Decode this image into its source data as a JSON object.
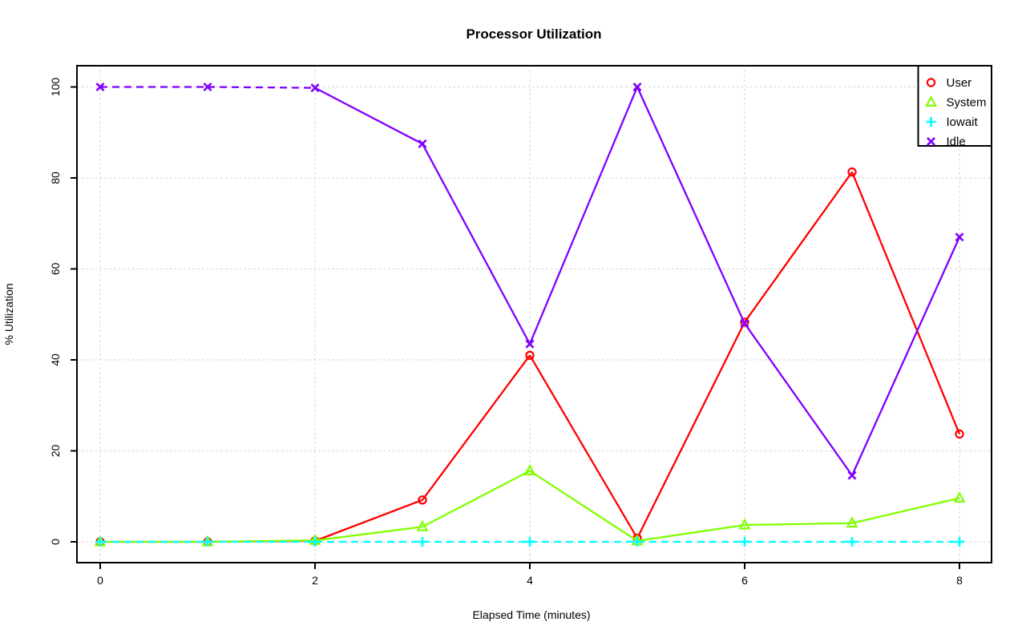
{
  "chart_data": {
    "type": "line",
    "title": "Processor Utilization",
    "xlabel": "Elapsed Time (minutes)",
    "ylabel": "% Utilization",
    "x": [
      0,
      1,
      2,
      3,
      4,
      5,
      6,
      7,
      8
    ],
    "x_tick_labels": [
      "0",
      "2",
      "4",
      "6",
      "8"
    ],
    "x_ticks": [
      0,
      2,
      4,
      6,
      8
    ],
    "y_tick_labels": [
      "0",
      "20",
      "40",
      "60",
      "80",
      "100"
    ],
    "y_ticks": [
      0,
      20,
      40,
      60,
      80,
      100
    ],
    "xlim": [
      0,
      8
    ],
    "ylim": [
      0,
      100
    ],
    "grid": {
      "visible": true,
      "style": "dotted",
      "color": "#d6d6d6"
    },
    "axis_color": "#000000",
    "background": "#ffffff",
    "legend": {
      "position": "top-right",
      "entries": [
        "User",
        "System",
        "Iowait",
        "Idle"
      ]
    },
    "series": [
      {
        "name": "User",
        "color": "#FF0000",
        "marker": "circle",
        "line": "solid",
        "values": [
          0,
          0,
          0.2,
          9.2,
          41.0,
          0.8,
          48.3,
          81.3,
          23.7
        ]
      },
      {
        "name": "System",
        "color": "#80FF00",
        "marker": "triangle",
        "line": "solid",
        "values": [
          0,
          0,
          0.3,
          3.3,
          15.6,
          0.2,
          3.7,
          4.1,
          9.6
        ]
      },
      {
        "name": "Iowait",
        "color": "#00FFFF",
        "marker": "plus",
        "line": "dashed",
        "values": [
          0,
          0,
          0,
          0,
          0,
          0,
          0,
          0,
          0
        ]
      },
      {
        "name": "Idle",
        "color": "#8000FF",
        "marker": "x",
        "line": "solid",
        "dashed_segments": [
          [
            0,
            1
          ],
          [
            1,
            2
          ]
        ],
        "values": [
          100,
          100,
          99.8,
          87.5,
          43.5,
          100,
          48.0,
          14.6,
          67.0
        ]
      }
    ]
  }
}
